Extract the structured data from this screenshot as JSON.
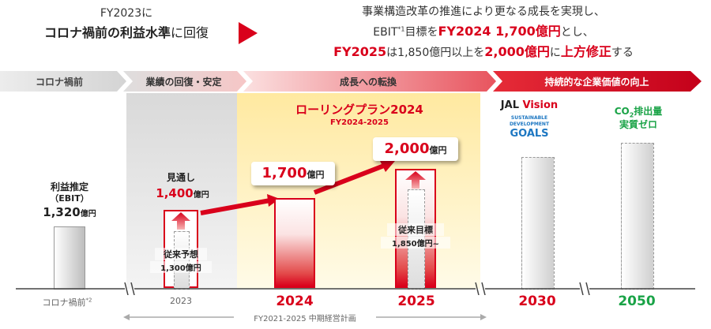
{
  "header": {
    "left_line1": "FY2023に",
    "left_line2_bold": "コロナ禍前の利益水準",
    "left_line2_tail": "に回復",
    "right_line1": "事業構造改革の推進により更なる成長を実現し、",
    "right_line2_a": "EBIT",
    "right_line2_sup": "*1",
    "right_line2_b": "目標を",
    "right_line2_red": "FY2024 1,700億円",
    "right_line2_c": "とし、",
    "right_line3_a": "FY2025",
    "right_line3_b": "は1,850億円以上を",
    "right_line3_c": "2,000億円",
    "right_line3_d": "に",
    "right_line3_e": "上方修正",
    "right_line3_f": "する"
  },
  "phases": [
    "コロナ禍前",
    "業績の回復・安定",
    "成長への転換",
    "持続的な企業価値の向上"
  ],
  "rolling_plan": {
    "title": "ローリングプラン2024",
    "sub": "FY2024-2025"
  },
  "labels": {
    "ebit_title": "利益推定",
    "ebit_sub": "（EBIT）",
    "ebit_val": "1,320",
    "unit": "億円",
    "outlook": "見通し",
    "outlook_val": "1,400",
    "prev_forecast": "従来予想",
    "prev_forecast_val": "1,300億円",
    "prev_target": "従来目標",
    "prev_target_val": "1,850億円~",
    "v2024": "1,700",
    "v2025": "2,000",
    "jal_a": "JAL",
    "jal_b": " Vision",
    "sdg_1": "SUSTAINABLE",
    "sdg_2": "DEVELOPMENT",
    "sdg_3": "GOALS",
    "co2_a": "CO",
    "co2_sub": "2",
    "co2_b": "排出量",
    "co2_c": "実質ゼロ",
    "plan_range": "FY2021-2025 中期経営計画"
  },
  "chart_data": {
    "type": "bar",
    "categories": [
      "コロナ禍前",
      "2023",
      "2024",
      "2025",
      "2030",
      "2050"
    ],
    "series": [
      {
        "name": "EBIT",
        "values": [
          1320,
          1400,
          1700,
          2000,
          null,
          null
        ]
      },
      {
        "values": [
          null,
          1300,
          null,
          1850,
          null,
          null
        ]
      }
    ],
    "ylabel": "",
    "unit": "億円"
  },
  "colors": {
    "accent": "#d9001b",
    "green": "#1aa347",
    "gray_bg": "#e7e7e7",
    "yellow_bg": "#fff3c2"
  }
}
